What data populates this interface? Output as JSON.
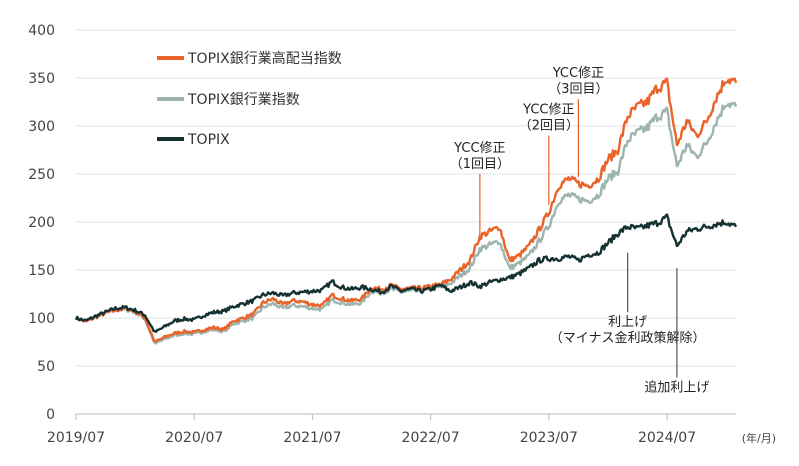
{
  "chart_data": {
    "type": "line",
    "x_unit_label": "(年/月)",
    "x_ticks": [
      "2019/07",
      "2020/07",
      "2021/07",
      "2022/07",
      "2023/07",
      "2024/07"
    ],
    "ylim": [
      0,
      400
    ],
    "y_ticks": [
      0,
      50,
      100,
      150,
      200,
      250,
      300,
      350,
      400
    ],
    "grid": "horizontal",
    "legend_position": "top-left",
    "series": [
      {
        "name": "TOPIX銀行業高配当指数",
        "color": "#E8642A",
        "points": [
          [
            "2019/07",
            100
          ],
          [
            "2019/08",
            96
          ],
          [
            "2019/09",
            101
          ],
          [
            "2019/10",
            105
          ],
          [
            "2019/11",
            108
          ],
          [
            "2019/12",
            110
          ],
          [
            "2020/01",
            107
          ],
          [
            "2020/02",
            100
          ],
          [
            "2020/03",
            75
          ],
          [
            "2020/04",
            80
          ],
          [
            "2020/05",
            84
          ],
          [
            "2020/06",
            86
          ],
          [
            "2020/07",
            85
          ],
          [
            "2020/08",
            88
          ],
          [
            "2020/09",
            90
          ],
          [
            "2020/10",
            88
          ],
          [
            "2020/11",
            97
          ],
          [
            "2020/12",
            100
          ],
          [
            "2021/01",
            104
          ],
          [
            "2021/02",
            116
          ],
          [
            "2021/03",
            120
          ],
          [
            "2021/04",
            114
          ],
          [
            "2021/05",
            118
          ],
          [
            "2021/06",
            117
          ],
          [
            "2021/07",
            114
          ],
          [
            "2021/08",
            113
          ],
          [
            "2021/09",
            124
          ],
          [
            "2021/10",
            120
          ],
          [
            "2021/11",
            118
          ],
          [
            "2021/12",
            120
          ],
          [
            "2022/01",
            132
          ],
          [
            "2022/02",
            130
          ],
          [
            "2022/03",
            134
          ],
          [
            "2022/04",
            130
          ],
          [
            "2022/05",
            131
          ],
          [
            "2022/06",
            131
          ],
          [
            "2022/07",
            133
          ],
          [
            "2022/08",
            135
          ],
          [
            "2022/09",
            140
          ],
          [
            "2022/10",
            150
          ],
          [
            "2022/11",
            160
          ],
          [
            "2022/12",
            185
          ],
          [
            "2023/01",
            190
          ],
          [
            "2023/02",
            195
          ],
          [
            "2023/03",
            160
          ],
          [
            "2023/04",
            165
          ],
          [
            "2023/05",
            175
          ],
          [
            "2023/06",
            192
          ],
          [
            "2023/07",
            210
          ],
          [
            "2023/08",
            238
          ],
          [
            "2023/09",
            245
          ],
          [
            "2023/10",
            240
          ],
          [
            "2023/11",
            238
          ],
          [
            "2023/12",
            245
          ],
          [
            "2024/01",
            265
          ],
          [
            "2024/02",
            275
          ],
          [
            "2024/03",
            310
          ],
          [
            "2024/04",
            320
          ],
          [
            "2024/05",
            325
          ],
          [
            "2024/06",
            340
          ],
          [
            "2024/07",
            345
          ],
          [
            "2024/08",
            280
          ],
          [
            "2024/09",
            305
          ],
          [
            "2024/10",
            290
          ],
          [
            "2024/11",
            305
          ],
          [
            "2024/12",
            330
          ],
          [
            "2025/01",
            350
          ],
          [
            "2025/02",
            345
          ]
        ]
      },
      {
        "name": "TOPIX銀行業指数",
        "color": "#9DB5AE",
        "points": [
          [
            "2019/07",
            100
          ],
          [
            "2019/08",
            96
          ],
          [
            "2019/09",
            101
          ],
          [
            "2019/10",
            105
          ],
          [
            "2019/11",
            108
          ],
          [
            "2019/12",
            109
          ],
          [
            "2020/01",
            106
          ],
          [
            "2020/02",
            99
          ],
          [
            "2020/03",
            73
          ],
          [
            "2020/04",
            78
          ],
          [
            "2020/05",
            82
          ],
          [
            "2020/06",
            84
          ],
          [
            "2020/07",
            83
          ],
          [
            "2020/08",
            86
          ],
          [
            "2020/09",
            88
          ],
          [
            "2020/10",
            86
          ],
          [
            "2020/11",
            94
          ],
          [
            "2020/12",
            97
          ],
          [
            "2021/01",
            100
          ],
          [
            "2021/02",
            111
          ],
          [
            "2021/03",
            115
          ],
          [
            "2021/04",
            110
          ],
          [
            "2021/05",
            113
          ],
          [
            "2021/06",
            112
          ],
          [
            "2021/07",
            110
          ],
          [
            "2021/08",
            109
          ],
          [
            "2021/09",
            119
          ],
          [
            "2021/10",
            116
          ],
          [
            "2021/11",
            114
          ],
          [
            "2021/12",
            116
          ],
          [
            "2022/01",
            128
          ],
          [
            "2022/02",
            126
          ],
          [
            "2022/03",
            130
          ],
          [
            "2022/04",
            127
          ],
          [
            "2022/05",
            128
          ],
          [
            "2022/06",
            128
          ],
          [
            "2022/07",
            130
          ],
          [
            "2022/08",
            132
          ],
          [
            "2022/09",
            136
          ],
          [
            "2022/10",
            144
          ],
          [
            "2022/11",
            152
          ],
          [
            "2022/12",
            172
          ],
          [
            "2023/01",
            176
          ],
          [
            "2023/02",
            180
          ],
          [
            "2023/03",
            152
          ],
          [
            "2023/04",
            157
          ],
          [
            "2023/05",
            165
          ],
          [
            "2023/06",
            180
          ],
          [
            "2023/07",
            196
          ],
          [
            "2023/08",
            222
          ],
          [
            "2023/09",
            228
          ],
          [
            "2023/10",
            224
          ],
          [
            "2023/11",
            222
          ],
          [
            "2023/12",
            228
          ],
          [
            "2024/01",
            245
          ],
          [
            "2024/02",
            253
          ],
          [
            "2024/03",
            285
          ],
          [
            "2024/04",
            293
          ],
          [
            "2024/05",
            298
          ],
          [
            "2024/06",
            310
          ],
          [
            "2024/07",
            315
          ],
          [
            "2024/08",
            258
          ],
          [
            "2024/09",
            280
          ],
          [
            "2024/10",
            268
          ],
          [
            "2024/11",
            282
          ],
          [
            "2024/12",
            305
          ],
          [
            "2025/01",
            325
          ],
          [
            "2025/02",
            320
          ]
        ]
      },
      {
        "name": "TOPIX",
        "color": "#143232",
        "points": [
          [
            "2019/07",
            100
          ],
          [
            "2019/08",
            97
          ],
          [
            "2019/09",
            102
          ],
          [
            "2019/10",
            106
          ],
          [
            "2019/11",
            110
          ],
          [
            "2019/12",
            111
          ],
          [
            "2020/01",
            108
          ],
          [
            "2020/02",
            103
          ],
          [
            "2020/03",
            85
          ],
          [
            "2020/04",
            91
          ],
          [
            "2020/05",
            97
          ],
          [
            "2020/06",
            99
          ],
          [
            "2020/07",
            98
          ],
          [
            "2020/08",
            103
          ],
          [
            "2020/09",
            106
          ],
          [
            "2020/10",
            107
          ],
          [
            "2020/11",
            112
          ],
          [
            "2020/12",
            115
          ],
          [
            "2021/01",
            118
          ],
          [
            "2021/02",
            124
          ],
          [
            "2021/03",
            126
          ],
          [
            "2021/04",
            123
          ],
          [
            "2021/05",
            126
          ],
          [
            "2021/06",
            127
          ],
          [
            "2021/07",
            128
          ],
          [
            "2021/08",
            129
          ],
          [
            "2021/09",
            138
          ],
          [
            "2021/10",
            132
          ],
          [
            "2021/11",
            130
          ],
          [
            "2021/12",
            132
          ],
          [
            "2022/01",
            130
          ],
          [
            "2022/02",
            127
          ],
          [
            "2022/03",
            133
          ],
          [
            "2022/04",
            128
          ],
          [
            "2022/05",
            130
          ],
          [
            "2022/06",
            128
          ],
          [
            "2022/07",
            130
          ],
          [
            "2022/08",
            134
          ],
          [
            "2022/09",
            128
          ],
          [
            "2022/10",
            132
          ],
          [
            "2022/11",
            137
          ],
          [
            "2022/12",
            133
          ],
          [
            "2023/01",
            137
          ],
          [
            "2023/02",
            140
          ],
          [
            "2023/03",
            142
          ],
          [
            "2023/04",
            146
          ],
          [
            "2023/05",
            152
          ],
          [
            "2023/06",
            160
          ],
          [
            "2023/07",
            162
          ],
          [
            "2023/08",
            162
          ],
          [
            "2023/09",
            164
          ],
          [
            "2023/10",
            160
          ],
          [
            "2023/11",
            166
          ],
          [
            "2023/12",
            168
          ],
          [
            "2024/01",
            178
          ],
          [
            "2024/02",
            188
          ],
          [
            "2024/03",
            195
          ],
          [
            "2024/04",
            193
          ],
          [
            "2024/05",
            196
          ],
          [
            "2024/06",
            199
          ],
          [
            "2024/07",
            205
          ],
          [
            "2024/08",
            175
          ],
          [
            "2024/09",
            190
          ],
          [
            "2024/10",
            193
          ],
          [
            "2024/11",
            195
          ],
          [
            "2024/12",
            198
          ],
          [
            "2025/01",
            200
          ],
          [
            "2025/02",
            195
          ]
        ]
      }
    ],
    "annotations": [
      {
        "lines": [
          "YCC修正",
          "（1回目）"
        ],
        "x": "2022/12",
        "y_from": 180,
        "y_to": 250
      },
      {
        "lines": [
          "YCC修正",
          "（2回目）"
        ],
        "x": "2023/07",
        "y_from": 218,
        "y_to": 290
      },
      {
        "lines": [
          "YCC修正",
          "（3回目）"
        ],
        "x": "2023/10",
        "y_from": 247,
        "y_to": 328
      },
      {
        "lines": [
          "利上げ",
          "（マイナス金利政策解除）"
        ],
        "x": "2024/03",
        "y_from": 168,
        "y_to": 106
      },
      {
        "lines": [
          "追加利上げ"
        ],
        "x": "2024/08",
        "y_from": 152,
        "y_to": 38
      }
    ]
  }
}
